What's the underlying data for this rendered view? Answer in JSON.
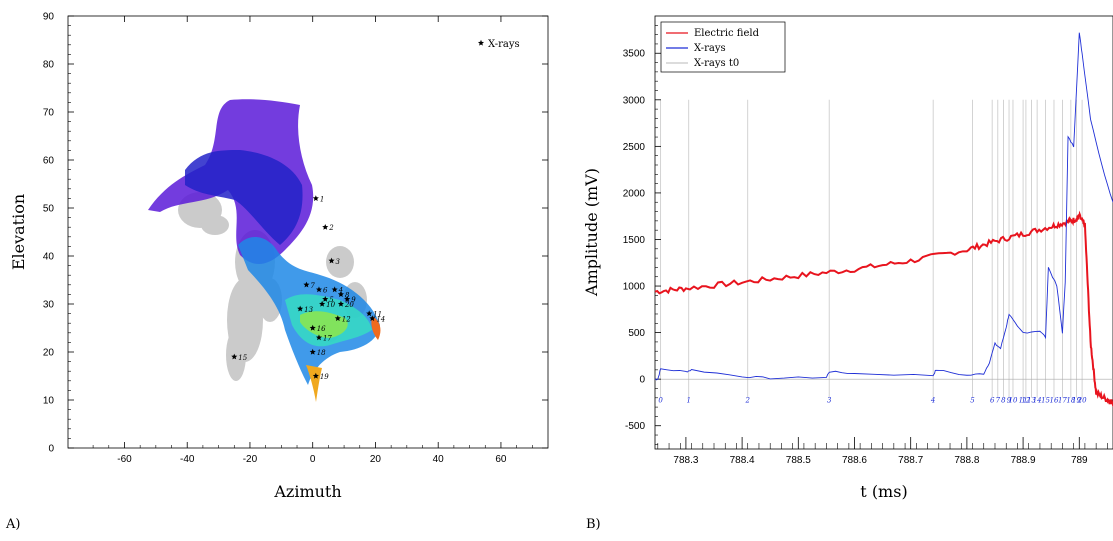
{
  "panels": [
    {
      "id": "A",
      "panel_label": "A)",
      "chart_data": {
        "type": "scatter",
        "title": "",
        "xlabel": "Azimuth",
        "ylabel": "Elevation",
        "xlim": [
          -78,
          75
        ],
        "ylim": [
          0,
          90
        ],
        "xticks": [
          -60,
          -40,
          -20,
          0,
          20,
          40,
          60
        ],
        "yticks": [
          0,
          10,
          20,
          30,
          40,
          50,
          60,
          70,
          80,
          90
        ],
        "grid": false,
        "legend": {
          "placement": "top-right",
          "entries": [
            {
              "label": "X-rays",
              "marker": "star",
              "color": "#000000"
            }
          ]
        },
        "series": [
          {
            "name": "X-rays",
            "marker": "star",
            "color": "#000000",
            "points": [
              {
                "label": "1",
                "x": 1,
                "y": 52
              },
              {
                "label": "2",
                "x": 4,
                "y": 46
              },
              {
                "label": "3",
                "x": 6,
                "y": 39
              },
              {
                "label": "4",
                "x": 7,
                "y": 33
              },
              {
                "label": "5",
                "x": 4,
                "y": 31
              },
              {
                "label": "6",
                "x": 2,
                "y": 33
              },
              {
                "label": "7",
                "x": -2,
                "y": 34
              },
              {
                "label": "8",
                "x": 9,
                "y": 32
              },
              {
                "label": "9",
                "x": 11,
                "y": 31
              },
              {
                "label": "10",
                "x": 3,
                "y": 30
              },
              {
                "label": "11",
                "x": 18,
                "y": 28
              },
              {
                "label": "12",
                "x": 8,
                "y": 27
              },
              {
                "label": "13",
                "x": -4,
                "y": 29
              },
              {
                "label": "14",
                "x": 19,
                "y": 27
              },
              {
                "label": "15",
                "x": -25,
                "y": 19
              },
              {
                "label": "16",
                "x": 0,
                "y": 25
              },
              {
                "label": "17",
                "x": 2,
                "y": 23
              },
              {
                "label": "18",
                "x": 0,
                "y": 20
              },
              {
                "label": "19",
                "x": 1,
                "y": 15
              },
              {
                "label": "20",
                "x": 9,
                "y": 30
              }
            ]
          }
        ]
      }
    },
    {
      "id": "B",
      "panel_label": "B)",
      "chart_data": {
        "type": "line",
        "title": "",
        "xlabel": "t (ms)",
        "ylabel": "Amplitude (mV)",
        "xlim": [
          788.245,
          789.06
        ],
        "ylim": [
          -750,
          3900
        ],
        "xticks": [
          788.3,
          788.4,
          788.5,
          788.6,
          788.7,
          788.8,
          788.9,
          789
        ],
        "yticks": [
          -500,
          0,
          500,
          1000,
          1500,
          2000,
          2500,
          3000,
          3500
        ],
        "grid": false,
        "legend": {
          "placement": "top-left",
          "entries": [
            {
              "label": "Electric field",
              "color": "#e8141e"
            },
            {
              "label": "X-rays",
              "color": "#1f2fd6"
            },
            {
              "label": "X-rays t0",
              "color": "#c8c8c8"
            }
          ]
        },
        "series": [
          {
            "name": "Electric field",
            "color": "#e8141e",
            "x": [
              788.245,
              788.3,
              788.4,
              788.5,
              788.6,
              788.7,
              788.8,
              788.85,
              788.9,
              788.95,
              788.98,
              788.995,
              789.0,
              789.01,
              789.02,
              789.03,
              789.05,
              789.06
            ],
            "y": [
              940,
              975,
              1040,
              1110,
              1180,
              1270,
              1390,
              1480,
              1560,
              1640,
              1690,
              1720,
              1750,
              1650,
              400,
              -150,
              -220,
              -250
            ]
          },
          {
            "name": "X-rays",
            "color": "#1f2fd6",
            "x": [
              788.245,
              788.25,
              788.255,
              788.3,
              788.31,
              788.4,
              788.45,
              788.55,
              788.555,
              788.6,
              788.74,
              788.745,
              788.8,
              788.83,
              788.84,
              788.85,
              788.86,
              788.87,
              788.875,
              788.89,
              788.9,
              788.93,
              788.94,
              788.945,
              788.96,
              788.97,
              788.975,
              788.98,
              788.99,
              789.0,
              789.005,
              789.02,
              789.04,
              789.06
            ],
            "y": [
              0,
              0,
              110,
              80,
              100,
              30,
              10,
              20,
              80,
              60,
              40,
              100,
              40,
              60,
              180,
              380,
              330,
              560,
              700,
              560,
              500,
              520,
              450,
              1200,
              1000,
              500,
              1050,
              2600,
              2500,
              3720,
              3500,
              2800,
              2300,
              1900
            ]
          }
        ],
        "t0_markers": [
          "0",
          "1",
          "2",
          "3",
          "4",
          "5",
          "6",
          "7",
          "8",
          "9",
          "10",
          "11",
          "12",
          "13",
          "14",
          "15",
          "16",
          "17",
          "18",
          "19",
          "20"
        ],
        "t0_times": [
          788.255,
          788.305,
          788.41,
          788.555,
          788.74,
          788.81,
          788.845,
          788.855,
          788.865,
          788.875,
          788.882,
          788.9,
          788.905,
          788.915,
          788.925,
          788.94,
          788.955,
          788.97,
          788.985,
          788.995,
          789.005
        ]
      }
    }
  ]
}
